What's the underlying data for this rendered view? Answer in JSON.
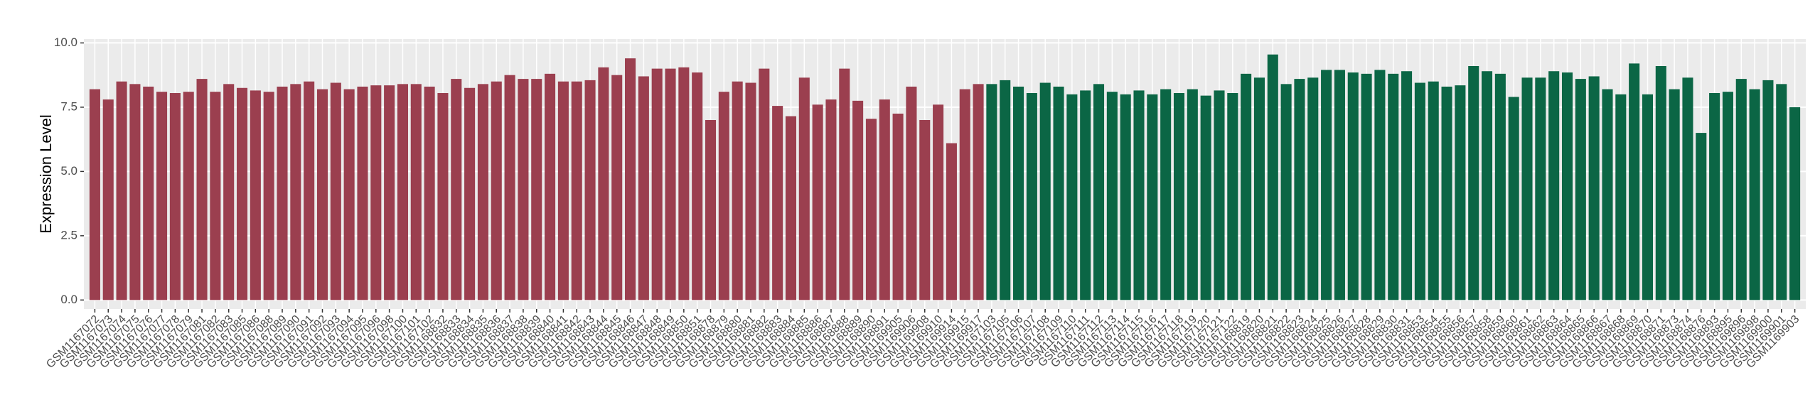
{
  "chart_data": {
    "type": "bar",
    "y_label": "Expression Level",
    "ylim": [
      -0.35,
      10.15
    ],
    "yticks": [
      {
        "value": 0,
        "label": "0.0"
      },
      {
        "value": 2.5,
        "label": "2.5"
      },
      {
        "value": 5,
        "label": "5.0"
      },
      {
        "value": 7.5,
        "label": "7.5"
      },
      {
        "value": 10,
        "label": "10.0"
      }
    ],
    "grid": true,
    "groups": [
      {
        "color": "#9b3f4f",
        "categories": [
          "GSM1167072",
          "GSM1167073",
          "GSM1167074",
          "GSM1167075",
          "GSM1167076",
          "GSM1167077",
          "GSM1167078",
          "GSM1167079",
          "GSM1167081",
          "GSM1167082",
          "GSM1167083",
          "GSM1167085",
          "GSM1167086",
          "GSM1167088",
          "GSM1167089",
          "GSM1167090",
          "GSM1167091",
          "GSM1167092",
          "GSM1167093",
          "GSM1167094",
          "GSM1167095",
          "GSM1167096",
          "GSM1167098",
          "GSM1167100",
          "GSM1167101",
          "GSM1167102",
          "GSM1168832",
          "GSM1168833",
          "GSM1168834",
          "GSM1168835",
          "GSM1168836",
          "GSM1168837",
          "GSM1168838",
          "GSM1168839",
          "GSM1168840",
          "GSM1168841",
          "GSM1168842",
          "GSM1168843",
          "GSM1168844",
          "GSM1168845",
          "GSM1168846",
          "GSM1168847",
          "GSM1168848",
          "GSM1168849",
          "GSM1168850",
          "GSM1168851",
          "GSM1168878",
          "GSM1168879",
          "GSM1168880",
          "GSM1168881",
          "GSM1168882",
          "GSM1168883",
          "GSM1168884",
          "GSM1168885",
          "GSM1168886",
          "GSM1168887",
          "GSM1168888",
          "GSM1168889",
          "GSM1168890",
          "GSM1168891",
          "GSM1169905",
          "GSM1169906",
          "GSM1169908",
          "GSM1169910",
          "GSM1169914",
          "GSM1169915",
          "GSM1169917"
        ],
        "values": [
          8.2,
          7.8,
          8.5,
          8.4,
          8.3,
          8.1,
          8.05,
          8.1,
          8.6,
          8.1,
          8.4,
          8.25,
          8.15,
          8.1,
          8.3,
          8.4,
          8.5,
          8.2,
          8.45,
          8.2,
          8.3,
          8.35,
          8.35,
          8.4,
          8.4,
          8.3,
          8.05,
          8.6,
          8.25,
          8.4,
          8.5,
          8.75,
          8.6,
          8.6,
          8.8,
          8.5,
          8.5,
          8.55,
          9.05,
          8.75,
          9.4,
          8.7,
          9.0,
          9.0,
          9.05,
          8.85,
          7.0,
          8.1,
          8.5,
          8.45,
          9.0,
          7.55,
          7.15,
          8.65,
          7.6,
          7.8,
          9.0,
          7.75,
          7.05,
          7.8,
          7.25,
          8.3,
          7.0,
          7.6,
          6.1,
          8.2,
          8.4
        ]
      },
      {
        "color": "#0b6645",
        "categories": [
          "GSM1167103",
          "GSM1167105",
          "GSM1167106",
          "GSM1167107",
          "GSM1167108",
          "GSM1167109",
          "GSM1167110",
          "GSM1167111",
          "GSM1167112",
          "GSM1167113",
          "GSM1167114",
          "GSM1167115",
          "GSM1167116",
          "GSM1167117",
          "GSM1167118",
          "GSM1167119",
          "GSM1167120",
          "GSM1167121",
          "GSM1167122",
          "GSM1168819",
          "GSM1168820",
          "GSM1168821",
          "GSM1168822",
          "GSM1168823",
          "GSM1168824",
          "GSM1168825",
          "GSM1168826",
          "GSM1168827",
          "GSM1168828",
          "GSM1168829",
          "GSM1168830",
          "GSM1168831",
          "GSM1168853",
          "GSM1168854",
          "GSM1168855",
          "GSM1168856",
          "GSM1168857",
          "GSM1168858",
          "GSM1168859",
          "GSM1168860",
          "GSM1168861",
          "GSM1168862",
          "GSM1168863",
          "GSM1168864",
          "GSM1168865",
          "GSM1168866",
          "GSM1168867",
          "GSM1168868",
          "GSM1168869",
          "GSM1168870",
          "GSM1168871",
          "GSM1168873",
          "GSM1168874",
          "GSM1168876",
          "GSM1168893",
          "GSM1168895",
          "GSM1169896",
          "GSM1169898",
          "GSM1169900",
          "GSM1169901",
          "GSM1169903"
        ],
        "values": [
          8.4,
          8.55,
          8.3,
          8.05,
          8.45,
          8.3,
          8.0,
          8.15,
          8.4,
          8.1,
          8.0,
          8.15,
          8.0,
          8.2,
          8.05,
          8.2,
          7.95,
          8.15,
          8.05,
          8.8,
          8.65,
          9.55,
          8.4,
          8.6,
          8.65,
          8.95,
          8.95,
          8.85,
          8.8,
          8.95,
          8.8,
          8.9,
          8.45,
          8.5,
          8.3,
          8.35,
          9.1,
          8.9,
          8.8,
          7.9,
          8.65,
          8.65,
          8.9,
          8.85,
          8.6,
          8.7,
          8.2,
          8.0,
          9.2,
          8.0,
          9.1,
          8.2,
          8.65,
          6.5,
          8.05,
          8.1,
          8.6,
          8.2,
          8.55,
          8.4,
          7.5
        ]
      }
    ]
  }
}
